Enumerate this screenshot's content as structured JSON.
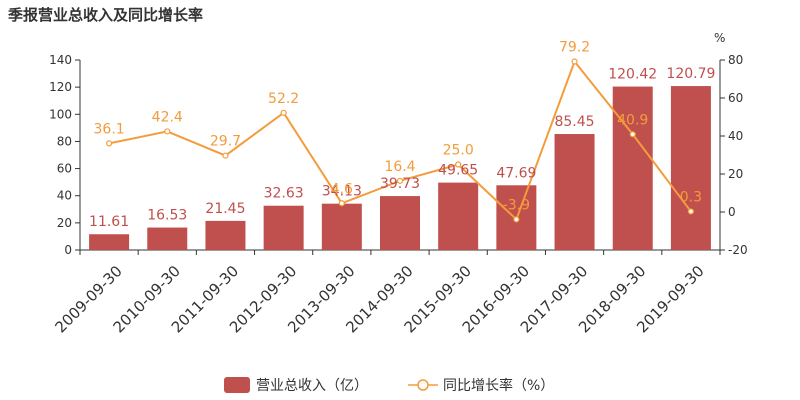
{
  "chart_data": {
    "type": "bar",
    "title": "季报营业总收入及同比增长率",
    "categories": [
      "2009-09-30",
      "2010-09-30",
      "2011-09-30",
      "2012-09-30",
      "2013-09-30",
      "2014-09-30",
      "2015-09-30",
      "2016-09-30",
      "2017-09-30",
      "2018-09-30",
      "2019-09-30"
    ],
    "series": [
      {
        "name": "营业总收入（亿）",
        "type": "bar",
        "axis": "left",
        "values": [
          11.61,
          16.53,
          21.45,
          32.63,
          34.13,
          39.73,
          49.65,
          47.69,
          85.45,
          120.42,
          120.79
        ],
        "labels": [
          "11.61",
          "16.53",
          "21.45",
          "32.63",
          "34.13",
          "39.73",
          "49.65",
          "47.69",
          "85.45",
          "120.42",
          "120.79"
        ]
      },
      {
        "name": "同比增长率（%）",
        "type": "line",
        "axis": "right",
        "values": [
          36.1,
          42.4,
          29.7,
          52.2,
          4.6,
          16.4,
          25.0,
          -3.9,
          79.2,
          40.9,
          0.3
        ],
        "labels": [
          "36.1",
          "42.4",
          "29.7",
          "52.2",
          "4.6",
          "16.4",
          "25.0",
          "-3.9",
          "79.2",
          "40.9",
          "0.3"
        ]
      }
    ],
    "y_left": {
      "range": [
        0,
        140
      ],
      "ticks": [
        "0",
        "20",
        "40",
        "60",
        "80",
        "100",
        "120",
        "140"
      ]
    },
    "y_right": {
      "range": [
        -20,
        80
      ],
      "ticks": [
        "-20",
        "0",
        "20",
        "40",
        "60",
        "80"
      ],
      "unit": "%"
    },
    "grid": false,
    "legend": "bottom-center",
    "colors": {
      "bar": "#c0504d",
      "line": "#f39c3b",
      "axis": "#333333"
    }
  }
}
